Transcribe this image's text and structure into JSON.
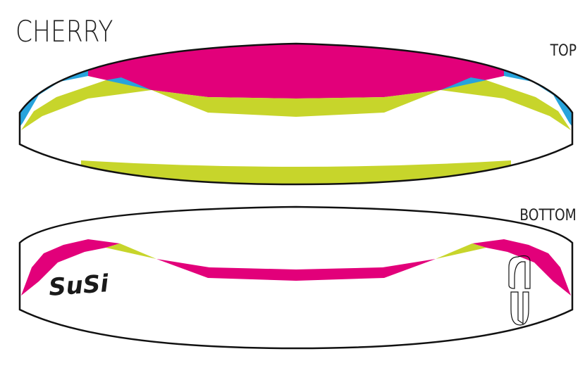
{
  "title": "CHERRY",
  "views": {
    "top": {
      "label": "TOP"
    },
    "bottom": {
      "label": "BOTTOM"
    }
  },
  "brand_logo": "SuSi",
  "colors": {
    "magenta": "#e2007a",
    "lime": "#c7d52b",
    "blue": "#27a3dc",
    "outline": "#111111",
    "base": "#ffffff"
  }
}
